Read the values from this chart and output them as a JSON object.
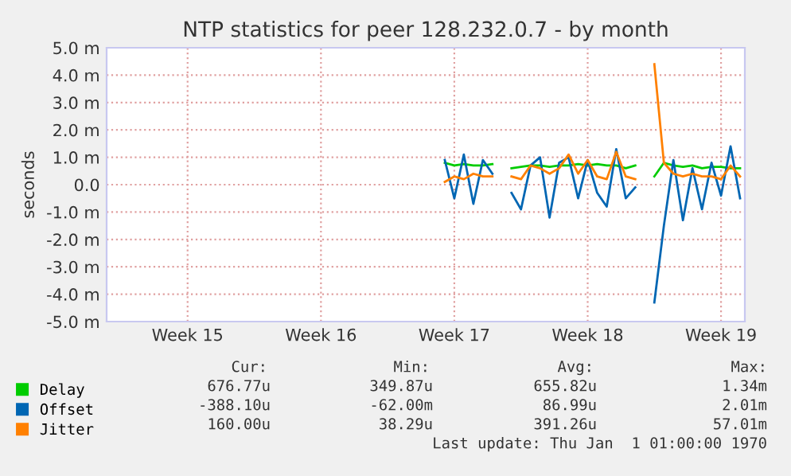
{
  "chart_data": {
    "type": "line",
    "title": "NTP statistics for peer 128.232.0.7 - by month",
    "ylabel": "seconds",
    "categories": [
      null,
      null,
      null,
      null,
      null,
      null,
      null,
      null,
      "Week 15",
      null,
      null,
      null,
      null,
      null,
      null,
      null,
      null,
      null,
      null,
      null,
      null,
      null,
      "Week 16",
      null,
      null,
      null,
      null,
      null,
      null,
      null,
      null,
      null,
      null,
      null,
      null,
      null,
      "Week 17",
      null,
      null,
      null,
      null,
      null,
      null,
      null,
      null,
      null,
      null,
      null,
      null,
      null,
      "Week 18",
      null,
      null,
      null,
      null,
      null,
      null,
      null,
      null,
      null,
      null,
      null,
      null,
      null,
      "Week 19",
      null,
      null
    ],
    "series": [
      {
        "name": "Delay",
        "color": "#00cc00",
        "values": [
          null,
          null,
          null,
          null,
          null,
          null,
          null,
          null,
          null,
          null,
          null,
          null,
          null,
          null,
          null,
          null,
          null,
          null,
          null,
          null,
          null,
          null,
          null,
          null,
          null,
          null,
          null,
          null,
          null,
          null,
          null,
          null,
          null,
          null,
          null,
          0.8,
          0.7,
          0.75,
          0.7,
          0.7,
          0.75,
          null,
          0.6,
          0.65,
          0.7,
          0.7,
          0.65,
          0.7,
          0.7,
          0.75,
          0.7,
          0.75,
          0.7,
          0.7,
          0.6,
          0.7,
          null,
          0.3,
          0.8,
          0.7,
          0.65,
          0.7,
          0.6,
          0.65,
          0.65,
          0.6,
          0.6
        ]
      },
      {
        "name": "Offset",
        "color": "#0066b3",
        "values": [
          null,
          null,
          null,
          null,
          null,
          null,
          null,
          null,
          null,
          null,
          null,
          null,
          null,
          null,
          null,
          null,
          null,
          null,
          null,
          null,
          null,
          null,
          null,
          null,
          null,
          null,
          null,
          null,
          null,
          null,
          null,
          null,
          null,
          null,
          null,
          0.9,
          -0.5,
          1.1,
          -0.7,
          0.9,
          0.4,
          null,
          -0.3,
          -0.9,
          0.7,
          1.0,
          -1.2,
          0.8,
          1.0,
          -0.5,
          0.9,
          -0.3,
          -0.8,
          1.3,
          -0.5,
          -0.1,
          null,
          -4.3,
          -1.5,
          0.9,
          -1.3,
          0.6,
          -0.9,
          0.8,
          -0.4,
          1.4,
          -0.5
        ]
      },
      {
        "name": "Jitter",
        "color": "#ff8000",
        "values": [
          null,
          null,
          null,
          null,
          null,
          null,
          null,
          null,
          null,
          null,
          null,
          null,
          null,
          null,
          null,
          null,
          null,
          null,
          null,
          null,
          null,
          null,
          null,
          null,
          null,
          null,
          null,
          null,
          null,
          null,
          null,
          null,
          null,
          null,
          null,
          0.1,
          0.3,
          0.2,
          0.4,
          0.3,
          0.3,
          null,
          0.3,
          0.2,
          0.7,
          0.6,
          0.4,
          0.6,
          1.1,
          0.4,
          0.9,
          0.3,
          0.2,
          1.2,
          0.3,
          0.2,
          null,
          4.4,
          0.8,
          0.4,
          0.3,
          0.4,
          0.3,
          0.3,
          0.2,
          0.7,
          0.3
        ]
      }
    ],
    "ylim": [
      -5,
      5
    ],
    "yticks": [
      {
        "value": -5,
        "label": "-5.0 m"
      },
      {
        "value": -4,
        "label": "-4.0 m"
      },
      {
        "value": -3,
        "label": "-3.0 m"
      },
      {
        "value": -2,
        "label": "-2.0 m"
      },
      {
        "value": -1,
        "label": "-1.0 m"
      },
      {
        "value": 0,
        "label": "0.0"
      },
      {
        "value": 1,
        "label": "1.0 m"
      },
      {
        "value": 2,
        "label": "2.0 m"
      },
      {
        "value": 3,
        "label": "3.0 m"
      },
      {
        "value": 4,
        "label": "4.0 m"
      },
      {
        "value": 5,
        "label": "5.0 m"
      }
    ],
    "grid": true,
    "legend": "bottom",
    "marker": "none",
    "line_style": "solid",
    "annotations": [
      "Cur:",
      "Min:",
      "Avg:",
      "Max:",
      "676.77u",
      "349.87u",
      "655.82u",
      "1.34m",
      "-388.10u",
      "-62.00m",
      "86.99u",
      "2.01m",
      "160.00u",
      "38.29u",
      "391.26u",
      "57.01m",
      "Last update: Thu Jan  1 01:00:00 1970"
    ]
  }
}
